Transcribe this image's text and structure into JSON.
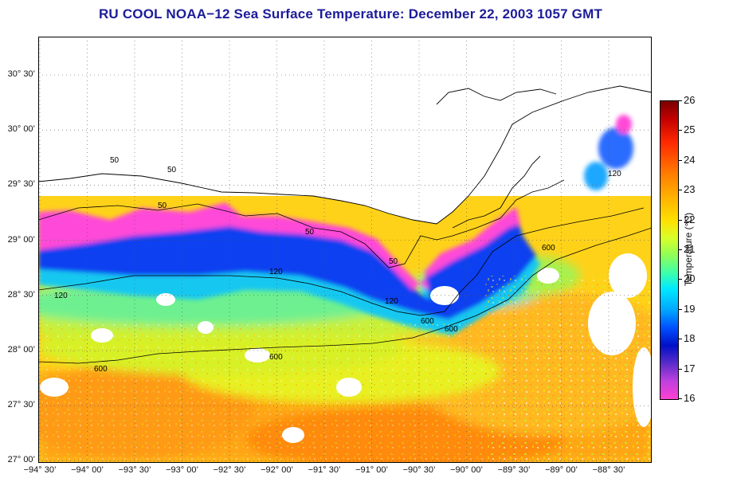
{
  "title": "RU COOL  NOAA−12  Sea Surface Temperature:  December 22, 2003 1057 GMT",
  "map": {
    "lat_labels": [
      "30° 30’",
      "30° 00’",
      "29° 30’",
      "29° 00’",
      "28° 30’",
      "28° 00’",
      "27° 30’",
      "27° 00’"
    ],
    "lon_labels": [
      "−94° 30’",
      "−94° 00’",
      "−93° 30’",
      "−93° 00’",
      "−92° 30’",
      "−92° 00’",
      "−91° 30’",
      "−91° 00’",
      "−90° 30’",
      "−90° 00’",
      "−89° 30’",
      "−89° 00’",
      "−88° 30’"
    ],
    "lat_range": [
      26.95,
      30.83
    ],
    "lon_range": [
      -94.5,
      -88.0
    ],
    "isobaths": [
      "50",
      "120",
      "600"
    ],
    "isobath_label_text": {
      "50": "50",
      "120": "120",
      "600": "600"
    }
  },
  "colorbar": {
    "title": "Temperature (°C)",
    "min": 16,
    "max": 26,
    "labels": [
      "26",
      "25",
      "24",
      "23",
      "22",
      "21",
      "20",
      "19",
      "18",
      "17",
      "16"
    ]
  }
}
